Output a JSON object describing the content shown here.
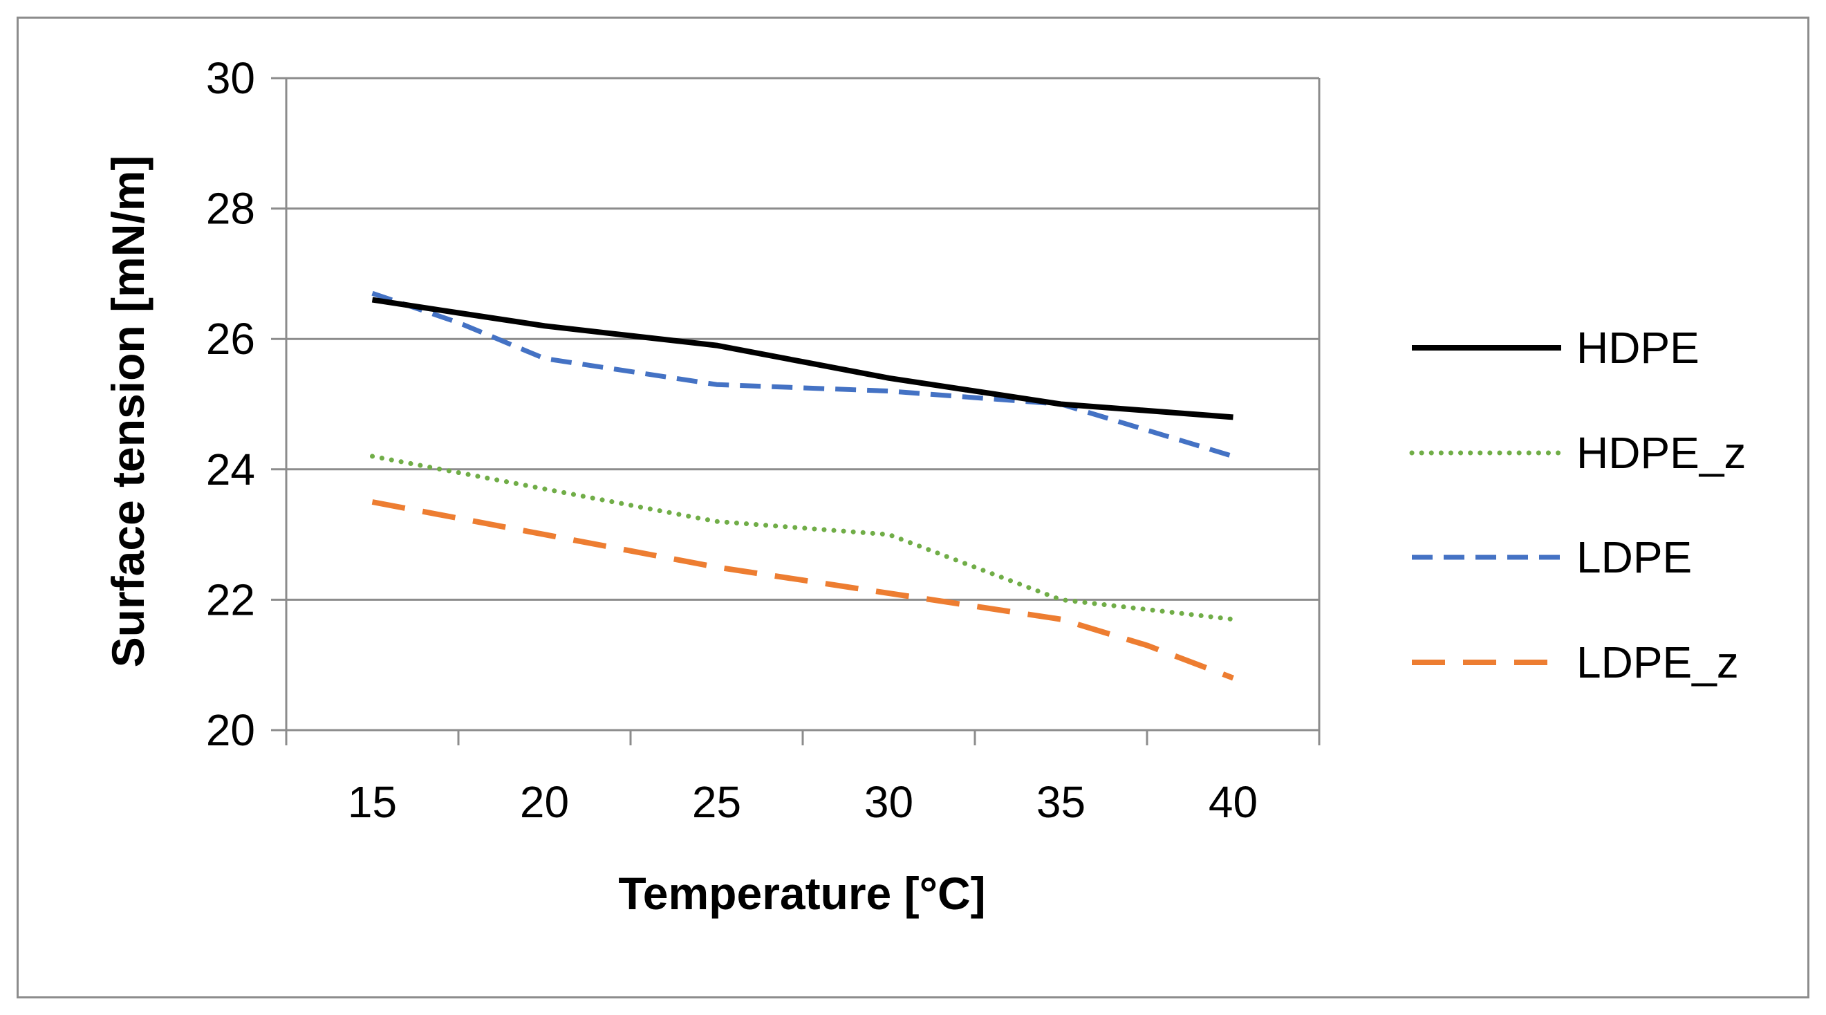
{
  "chart_data": {
    "type": "line",
    "title": "",
    "xlabel": "Temperature [°C]",
    "ylabel": "Surface tension [mN/m]",
    "x": [
      15,
      17.5,
      20,
      22.5,
      25,
      27.5,
      30,
      32.5,
      35,
      37.5,
      40
    ],
    "x_tick_labels": [
      "15",
      "20",
      "25",
      "30",
      "35",
      "40"
    ],
    "x_ticks": [
      15,
      20,
      25,
      30,
      35,
      40
    ],
    "y_ticks": [
      20,
      22,
      24,
      26,
      28,
      30
    ],
    "y_tick_labels": [
      "20",
      "22",
      "24",
      "26",
      "28",
      "30"
    ],
    "ylim": [
      20,
      30
    ],
    "grid": "horizontal",
    "legend_position": "right",
    "series": [
      {
        "name": "HDPE",
        "color": "#000000",
        "style": "solid",
        "values": [
          26.6,
          26.4,
          26.2,
          26.05,
          25.9,
          25.65,
          25.4,
          25.2,
          25.0,
          24.9,
          24.8
        ]
      },
      {
        "name": "HDPE_z",
        "color": "#70ad47",
        "style": "dotted",
        "values": [
          24.2,
          23.95,
          23.7,
          23.45,
          23.2,
          23.1,
          23.0,
          22.5,
          22.0,
          21.85,
          21.7
        ]
      },
      {
        "name": "LDPE",
        "color": "#4472c4",
        "style": "dashed",
        "values": [
          26.7,
          26.25,
          25.7,
          25.5,
          25.3,
          25.25,
          25.2,
          25.1,
          25.0,
          24.6,
          24.2
        ]
      },
      {
        "name": "LDPE_z",
        "color": "#ed7d31",
        "style": "long-dashed",
        "values": [
          23.5,
          23.25,
          23.0,
          22.75,
          22.5,
          22.3,
          22.1,
          21.9,
          21.7,
          21.3,
          20.8
        ]
      }
    ]
  }
}
